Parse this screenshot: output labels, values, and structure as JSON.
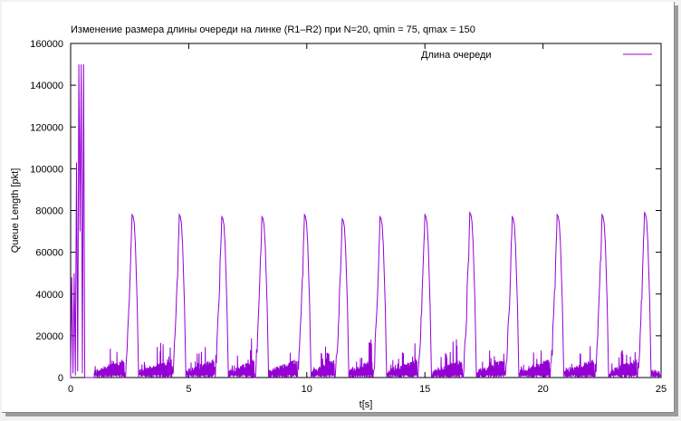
{
  "chart_data": {
    "type": "line",
    "title": "Изменение размера длины очереди на линке (R1–R2) при N=20, qmin = 75, qmax = 150",
    "xlabel": "t[s]",
    "ylabel": "Queue Length [pkt]",
    "xlim": [
      0,
      25
    ],
    "ylim": [
      0,
      160000
    ],
    "xticks": [
      "0",
      "5",
      "10",
      "15",
      "20",
      "25"
    ],
    "yticks": [
      "0",
      "20000",
      "40000",
      "60000",
      "80000",
      "100000",
      "120000",
      "140000",
      "160000"
    ],
    "grid": false,
    "legend": "top-right",
    "series": [
      {
        "name": "Длина очереди",
        "color": "#9400d3",
        "initial_burst": {
          "t": [
            0.0,
            0.05,
            0.1,
            0.15,
            0.2,
            0.25,
            0.3,
            0.35,
            0.4,
            0.45,
            0.5,
            0.55,
            0.6,
            0.65
          ],
          "q": [
            0,
            48000,
            2000,
            50000,
            1000,
            103000,
            3000,
            150000,
            70000,
            150000,
            2000,
            150000,
            0,
            0
          ]
        },
        "peaks": [
          {
            "t": 2.6,
            "q": 78000
          },
          {
            "t": 4.6,
            "q": 78000
          },
          {
            "t": 6.4,
            "q": 77000
          },
          {
            "t": 8.1,
            "q": 77000
          },
          {
            "t": 9.9,
            "q": 78000
          },
          {
            "t": 11.5,
            "q": 76000
          },
          {
            "t": 13.1,
            "q": 77000
          },
          {
            "t": 15.0,
            "q": 78000
          },
          {
            "t": 16.9,
            "q": 79000
          },
          {
            "t": 18.7,
            "q": 77000
          },
          {
            "t": 20.6,
            "q": 78000
          },
          {
            "t": 22.5,
            "q": 78000
          },
          {
            "t": 24.3,
            "q": 79000
          }
        ]
      }
    ]
  }
}
